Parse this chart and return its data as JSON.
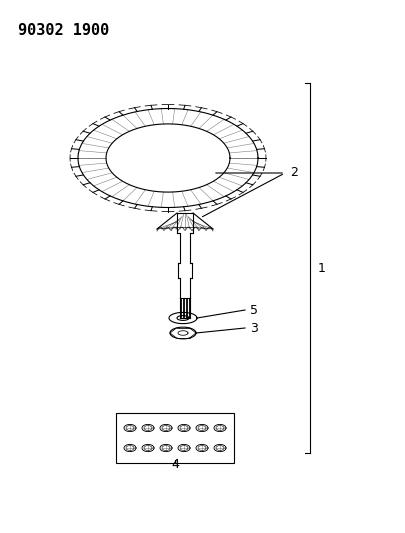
{
  "title": "90302 1900",
  "background_color": "#ffffff",
  "line_color": "#000000",
  "label_color": "#000000",
  "part_numbers": [
    "1",
    "2",
    "3",
    "4",
    "5"
  ],
  "header_fontsize": 11,
  "label_fontsize": 9,
  "fig_width": 4.05,
  "fig_height": 5.33,
  "dpi": 100
}
